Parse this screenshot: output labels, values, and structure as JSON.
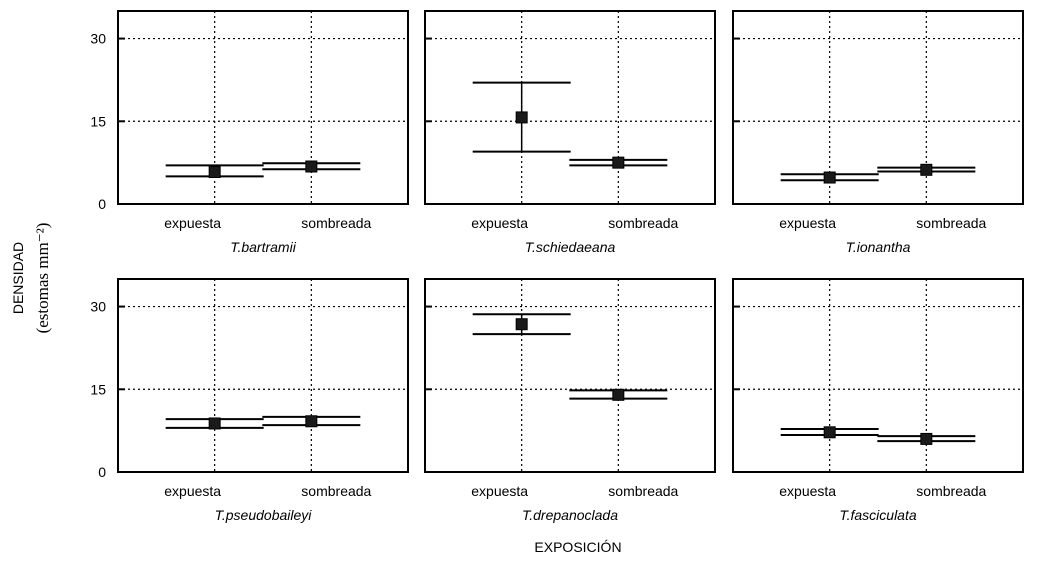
{
  "chart_data": {
    "type": "scatter",
    "ylabel_line1": "DENSIDAD",
    "ylabel_line2": "(estomas mm⁻²)",
    "xlabel": "EXPOSICIÓN",
    "categories": [
      "expuesta",
      "sombreada"
    ],
    "ylim": [
      0,
      35
    ],
    "yticks": [
      0,
      15,
      30
    ],
    "grid": true,
    "panels": [
      {
        "species": "T.bartramii",
        "points": [
          {
            "category": "expuesta",
            "mean": 5.8,
            "low": 5.0,
            "high": 7.0
          },
          {
            "category": "sombreada",
            "mean": 6.8,
            "low": 6.3,
            "high": 7.4
          }
        ]
      },
      {
        "species": "T.schiedaeana",
        "points": [
          {
            "category": "expuesta",
            "mean": 15.7,
            "low": 9.5,
            "high": 22.0
          },
          {
            "category": "sombreada",
            "mean": 7.5,
            "low": 7.0,
            "high": 8.0
          }
        ]
      },
      {
        "species": "T.ionantha",
        "points": [
          {
            "category": "expuesta",
            "mean": 4.8,
            "low": 4.3,
            "high": 5.4
          },
          {
            "category": "sombreada",
            "mean": 6.2,
            "low": 5.9,
            "high": 6.6
          }
        ]
      },
      {
        "species": "T.pseudobaileyi",
        "points": [
          {
            "category": "expuesta",
            "mean": 8.8,
            "low": 8.0,
            "high": 9.6
          },
          {
            "category": "sombreada",
            "mean": 9.2,
            "low": 8.5,
            "high": 10.0
          }
        ]
      },
      {
        "species": "T.drepanoclada",
        "points": [
          {
            "category": "expuesta",
            "mean": 26.8,
            "low": 25.0,
            "high": 28.6
          },
          {
            "category": "sombreada",
            "mean": 14.0,
            "low": 13.3,
            "high": 14.8
          }
        ]
      },
      {
        "species": "T.fasciculata",
        "points": [
          {
            "category": "expuesta",
            "mean": 7.2,
            "low": 6.7,
            "high": 7.8
          },
          {
            "category": "sombreada",
            "mean": 6.0,
            "low": 5.6,
            "high": 6.5
          }
        ]
      }
    ]
  }
}
